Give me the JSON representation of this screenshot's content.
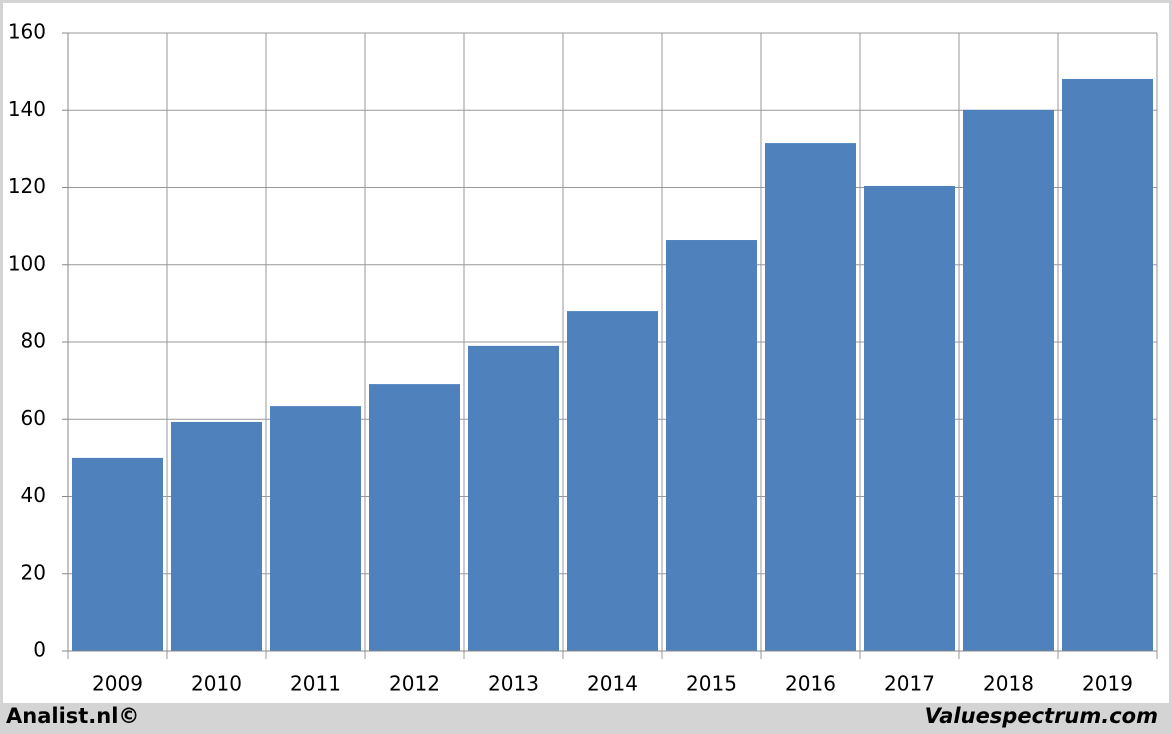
{
  "chart_data": {
    "type": "bar",
    "categories": [
      "2009",
      "2010",
      "2011",
      "2012",
      "2013",
      "2014",
      "2015",
      "2016",
      "2017",
      "2018",
      "2019"
    ],
    "values": [
      50.0,
      59.3,
      63.4,
      69.1,
      79.0,
      88.0,
      106.4,
      131.5,
      120.4,
      140.1,
      148.1
    ],
    "color": "#4f81bd",
    "ylim": [
      0,
      160
    ],
    "yticks": [
      0,
      20,
      40,
      60,
      80,
      100,
      120,
      140,
      160
    ],
    "grid": true,
    "footer_left": "Analist.nl©",
    "footer_right": "Valuespectrum.com"
  }
}
